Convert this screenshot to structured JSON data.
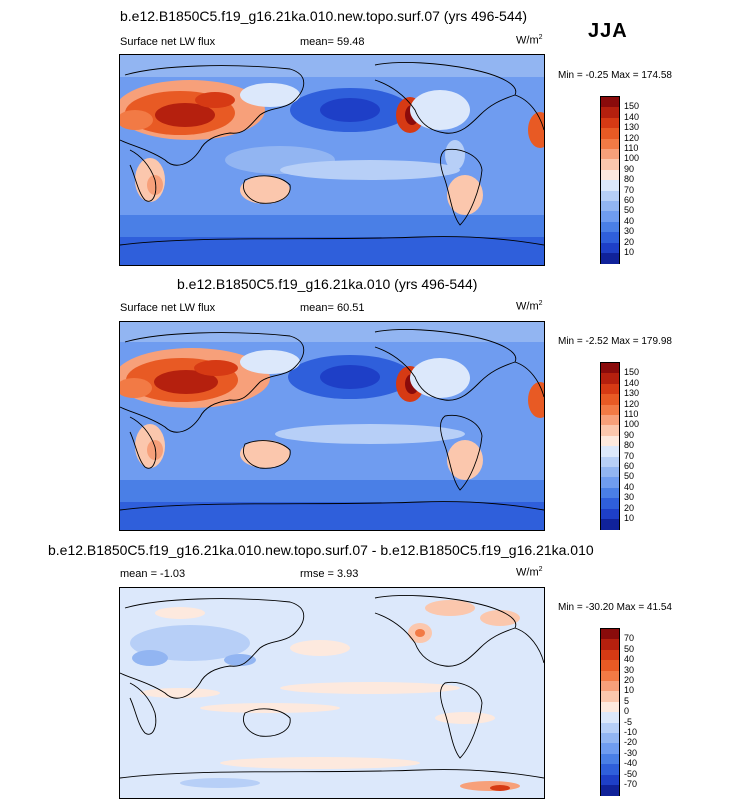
{
  "season": "JJA",
  "panels": [
    {
      "title": "b.e12.B1850C5.f19_g16.21ka.010.new.topo.surf.07 (yrs 496-544)",
      "left_label": "Surface net LW flux",
      "center_label": "mean=  59.48",
      "units_base": "W/m",
      "units_exp": "2",
      "minmax": "Min =  -0.25 Max = 174.58",
      "colorbar": {
        "labels": [
          "150",
          "140",
          "130",
          "120",
          "110",
          "100",
          "90",
          "80",
          "70",
          "60",
          "50",
          "40",
          "30",
          "20",
          "10"
        ],
        "colors": [
          "#8a0b0b",
          "#b5200e",
          "#d63a14",
          "#e85a24",
          "#f27a45",
          "#f7a07a",
          "#fbc7ad",
          "#fde9de",
          "#dce8fb",
          "#b7cff7",
          "#92b5f2",
          "#6f9cf0",
          "#4a7fe6",
          "#2f5fdb",
          "#1e3fc7",
          "#10229a"
        ]
      },
      "map_style": "absolute"
    },
    {
      "title": "b.e12.B1850C5.f19_g16.21ka.010 (yrs 496-544)",
      "left_label": "Surface net LW flux",
      "center_label": "mean=  60.51",
      "units_base": "W/m",
      "units_exp": "2",
      "minmax": "Min =  -2.52 Max = 179.98",
      "colorbar": {
        "labels": [
          "150",
          "140",
          "130",
          "120",
          "110",
          "100",
          "90",
          "80",
          "70",
          "60",
          "50",
          "40",
          "30",
          "20",
          "10"
        ],
        "colors": [
          "#8a0b0b",
          "#b5200e",
          "#d63a14",
          "#e85a24",
          "#f27a45",
          "#f7a07a",
          "#fbc7ad",
          "#fde9de",
          "#dce8fb",
          "#b7cff7",
          "#92b5f2",
          "#6f9cf0",
          "#4a7fe6",
          "#2f5fdb",
          "#1e3fc7",
          "#10229a"
        ]
      },
      "map_style": "absolute"
    },
    {
      "title": "b.e12.B1850C5.f19_g16.21ka.010.new.topo.surf.07 - b.e12.B1850C5.f19_g16.21ka.010",
      "left_label": "mean =  -1.03",
      "center_label": "rmse =   3.93",
      "units_base": "W/m",
      "units_exp": "2",
      "minmax": "Min = -30.20 Max =  41.54",
      "colorbar": {
        "labels": [
          "70",
          "50",
          "40",
          "30",
          "20",
          "10",
          "5",
          "0",
          "-5",
          "-10",
          "-20",
          "-30",
          "-40",
          "-50",
          "-70"
        ],
        "colors": [
          "#8a0b0b",
          "#b5200e",
          "#d63a14",
          "#e85a24",
          "#f27a45",
          "#f7a07a",
          "#fbc7ad",
          "#fde9de",
          "#dce8fb",
          "#b7cff7",
          "#92b5f2",
          "#6f9cf0",
          "#4a7fe6",
          "#2f5fdb",
          "#1e3fc7",
          "#10229a"
        ]
      },
      "map_style": "difference"
    }
  ]
}
